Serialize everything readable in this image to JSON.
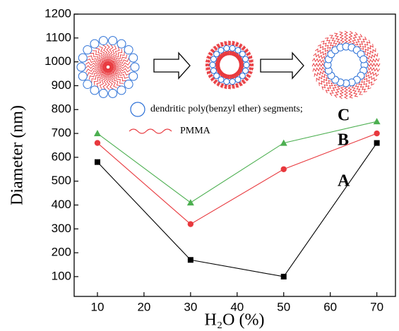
{
  "chart_data": {
    "type": "line",
    "x_label": "H₂O (%)",
    "y_label": "Diameter (nm)",
    "x": [
      10,
      30,
      50,
      70
    ],
    "series": [
      {
        "name": "A",
        "color": "#000000",
        "marker": "square",
        "values": [
          580,
          170,
          100,
          660
        ]
      },
      {
        "name": "B",
        "color": "#e8383d",
        "marker": "circle",
        "values": [
          660,
          320,
          550,
          700
        ]
      },
      {
        "name": "C",
        "color": "#4caf50",
        "marker": "triangle",
        "values": [
          700,
          410,
          660,
          750
        ]
      }
    ],
    "xlim": [
      5,
      74
    ],
    "xticks": [
      10,
      20,
      30,
      40,
      50,
      60,
      70
    ],
    "ylim": [
      17,
      1200
    ],
    "yticks": [
      100,
      200,
      300,
      400,
      500,
      600,
      700,
      800,
      900,
      1000,
      1100,
      1200
    ],
    "annotations": [
      "dendritic poly(benzyl ether) segments;",
      "PMMA"
    ]
  }
}
